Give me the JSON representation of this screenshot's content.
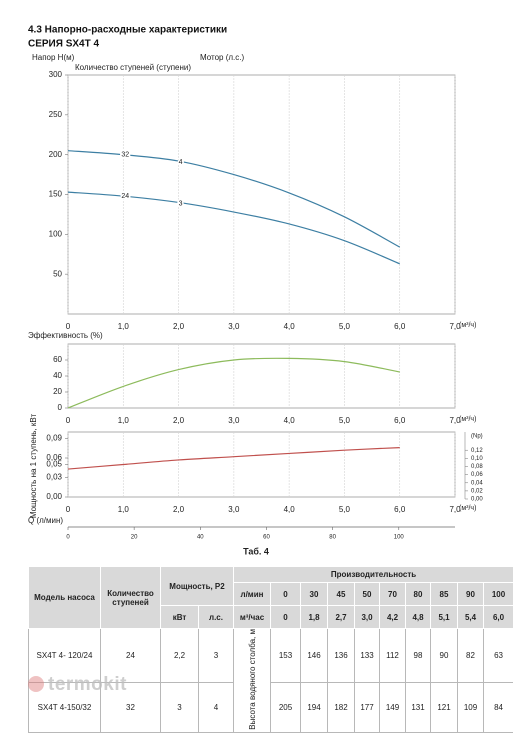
{
  "header": {
    "title": "4.3 Напорно-расходные характеристики",
    "subtitle": "СЕРИЯ SX4T 4"
  },
  "chart_data": [
    {
      "type": "line",
      "ylabel": "Напор H(м)",
      "motor_label": "Мотор (л.с.)",
      "stages_label": "Количество ступеней (ступени)",
      "xunit": "(м³/ч)",
      "x": [
        0,
        1,
        2,
        3,
        4,
        5,
        6
      ],
      "series": [
        {
          "name": "32",
          "motor": "4",
          "color": "#3d7fa3",
          "values": [
            205,
            200,
            192,
            175,
            152,
            122,
            84
          ]
        },
        {
          "name": "24",
          "motor": "3",
          "color": "#3d7fa3",
          "values": [
            153,
            148,
            140,
            128,
            113,
            92,
            63
          ]
        }
      ],
      "xlim": [
        0,
        7
      ],
      "xticks": [
        0,
        {
          "value": 1,
          "label": "1,0"
        },
        {
          "value": 2,
          "label": "2,0"
        },
        {
          "value": 3,
          "label": "3,0"
        },
        {
          "value": 4,
          "label": "4,0"
        },
        {
          "value": 5,
          "label": "5,0"
        },
        {
          "value": 6,
          "label": "6,0"
        },
        {
          "value": 7,
          "label": "7,0"
        }
      ],
      "ylim": [
        0,
        300
      ],
      "yticks": [
        50,
        100,
        150,
        200,
        250,
        300
      ],
      "grid": "x"
    },
    {
      "type": "line",
      "ylabel": "Эффективность (%)",
      "xunit": "(м³/ч)",
      "x": [
        0,
        1,
        2,
        3,
        4,
        5,
        6
      ],
      "series": [
        {
          "color": "#8dbb5c",
          "values": [
            0,
            27,
            48,
            60,
            62,
            58,
            45
          ]
        }
      ],
      "xlim": [
        0,
        7
      ],
      "xticks": [
        0,
        {
          "value": 1,
          "label": "1,0"
        },
        {
          "value": 2,
          "label": "2,0"
        },
        {
          "value": 3,
          "label": "3,0"
        },
        {
          "value": 4,
          "label": "4,0"
        },
        {
          "value": 5,
          "label": "5,0"
        },
        {
          "value": 6,
          "label": "6,0"
        },
        {
          "value": 7,
          "label": "7,0"
        }
      ],
      "ylim": [
        0,
        80
      ],
      "yticks": [
        0,
        20,
        40,
        60
      ],
      "grid": "x"
    },
    {
      "type": "line",
      "ylabel": "Мощность на 1 ступень, кВт",
      "y2label": "(Np)",
      "xunit": "(м³/ч)",
      "x2label": "Q (л/мин)",
      "x": [
        0,
        1,
        2,
        3,
        4,
        5,
        6
      ],
      "series": [
        {
          "color": "#c0504d",
          "values": [
            0.043,
            0.05,
            0.057,
            0.062,
            0.067,
            0.072,
            0.076
          ]
        }
      ],
      "xlim": [
        0,
        7
      ],
      "xticks": [
        0,
        {
          "value": 1,
          "label": "1,0"
        },
        {
          "value": 2,
          "label": "2,0"
        },
        {
          "value": 3,
          "label": "3,0"
        },
        {
          "value": 4,
          "label": "4,0"
        },
        {
          "value": 5,
          "label": "5,0"
        },
        {
          "value": 6,
          "label": "6,0"
        },
        {
          "value": 7,
          "label": "7,0"
        }
      ],
      "ylim": [
        0,
        0.1
      ],
      "yticks": [
        {
          "value": 0,
          "label": "0,00"
        },
        {
          "value": 0.03,
          "label": "0,03"
        },
        {
          "value": 0.05,
          "label": "0,05"
        },
        {
          "value": 0.06,
          "label": "0,06"
        },
        {
          "value": 0.09,
          "label": "0,09"
        }
      ],
      "y2lim": [
        0,
        0.16
      ],
      "y2ticks": [
        {
          "value": 0,
          "label": "0,00"
        },
        {
          "value": 0.02,
          "label": "0,02"
        },
        {
          "value": 0.04,
          "label": "0,04"
        },
        {
          "value": 0.06,
          "label": "0,06"
        },
        {
          "value": 0.08,
          "label": "0,08"
        },
        {
          "value": 0.1,
          "label": "0,10"
        },
        {
          "value": 0.12,
          "label": "0,12"
        }
      ],
      "x2lim": [
        0,
        117
      ],
      "x2ticks": [
        0,
        20,
        40,
        60,
        80,
        100
      ],
      "grid": "x"
    }
  ],
  "table": {
    "caption": "Таб. 4",
    "headers": {
      "model": "Модель насоса",
      "stages": "Количество ступеней",
      "power": "Мощность, Р2",
      "kw": "кВт",
      "hp": "л.с.",
      "capacity": "Производительность",
      "lmin": "л/мин",
      "m3h": "м³/час",
      "head": "Высота водяного столба, м"
    },
    "flow_lmin": [
      "0",
      "30",
      "45",
      "50",
      "70",
      "80",
      "85",
      "90",
      "100"
    ],
    "flow_m3h": [
      "0",
      "1,8",
      "2,7",
      "3,0",
      "4,2",
      "4,8",
      "5,1",
      "5,4",
      "6,0"
    ],
    "rows": [
      {
        "model": "SX4T 4- 120/24",
        "stages": "24",
        "kw": "2,2",
        "hp": "3",
        "heads": [
          "153",
          "146",
          "136",
          "133",
          "112",
          "98",
          "90",
          "82",
          "63"
        ]
      },
      {
        "model": "SX4T 4-150/32",
        "stages": "32",
        "kw": "3",
        "hp": "4",
        "heads": [
          "205",
          "194",
          "182",
          "177",
          "149",
          "131",
          "121",
          "109",
          "84"
        ]
      }
    ]
  },
  "watermark": "termokit"
}
